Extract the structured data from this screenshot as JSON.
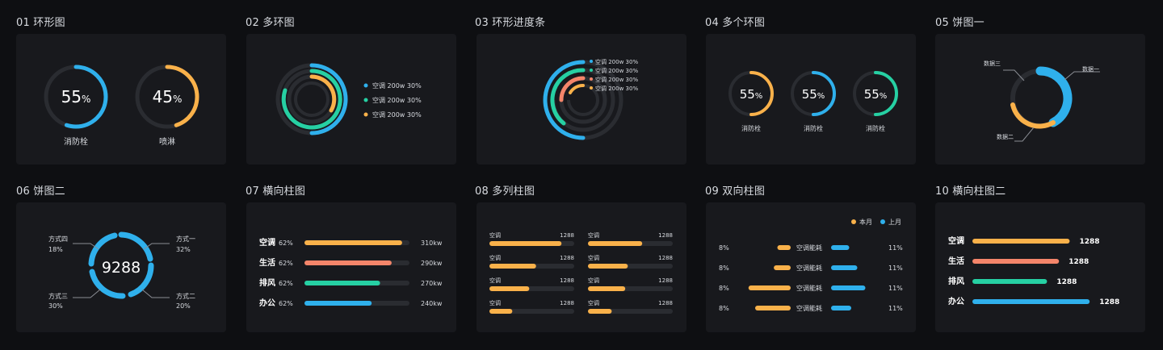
{
  "titles": [
    "01 环形图",
    "02 多环图",
    "03 环形进度条",
    "04 多个环图",
    "05 饼图一",
    "06 饼图二",
    "07 横向柱图",
    "08 多列柱图",
    "09 双向柱图",
    "10 横向柱图二"
  ],
  "colors": {
    "blue": "#2fb0ec",
    "orange": "#f9b14a",
    "green": "#26d0a3",
    "salmon": "#f4856a",
    "track": "#2a2c31",
    "bg": "#18191d"
  },
  "c01": {
    "items": [
      {
        "value": "55",
        "unit": "%",
        "label": "消防栓",
        "pct": 0.55,
        "color": "#2fb0ec"
      },
      {
        "value": "45",
        "unit": "%",
        "label": "喷淋",
        "pct": 0.45,
        "color": "#f9b14a"
      }
    ]
  },
  "c02": {
    "legend": [
      {
        "text": "空调 200w  30%",
        "color": "#2fb0ec"
      },
      {
        "text": "空调 200w  30%",
        "color": "#26d0a3"
      },
      {
        "text": "空调 200w  30%",
        "color": "#f9b14a"
      }
    ]
  },
  "c03": {
    "legend": [
      {
        "text": "空调 200w  30%",
        "color": "#2fb0ec"
      },
      {
        "text": "空调 200w  30%",
        "color": "#26d0a3"
      },
      {
        "text": "空调 200w  30%",
        "color": "#f4856a"
      },
      {
        "text": "空调 200w  30%",
        "color": "#f9b14a"
      }
    ]
  },
  "c04": {
    "items": [
      {
        "value": "55",
        "unit": "%",
        "label": "消防栓",
        "color": "#f9b14a"
      },
      {
        "value": "55",
        "unit": "%",
        "label": "消防栓",
        "color": "#2fb0ec"
      },
      {
        "value": "55",
        "unit": "%",
        "label": "消防栓",
        "color": "#26d0a3"
      }
    ]
  },
  "c05": {
    "labels": [
      "数据三",
      "数据一",
      "数据二"
    ]
  },
  "c06": {
    "center": "9288",
    "labels": [
      {
        "name": "方式四",
        "pct": "18%"
      },
      {
        "name": "方式一",
        "pct": "32%"
      },
      {
        "name": "方式三",
        "pct": "30%"
      },
      {
        "name": "方式二",
        "pct": "20%"
      }
    ]
  },
  "c07": {
    "rows": [
      {
        "name": "空调",
        "pct": "62%",
        "value": "310kw",
        "fill": 0.93,
        "color": "#f9b14a"
      },
      {
        "name": "生活",
        "pct": "62%",
        "value": "290kw",
        "fill": 0.83,
        "color": "#f4856a"
      },
      {
        "name": "排风",
        "pct": "62%",
        "value": "270kw",
        "fill": 0.72,
        "color": "#26d0a3"
      },
      {
        "name": "办公",
        "pct": "62%",
        "value": "240kw",
        "fill": 0.64,
        "color": "#2fb0ec"
      }
    ]
  },
  "c08": {
    "rows": [
      {
        "l": {
          "name": "空调",
          "value": "1288",
          "fill": 0.85
        },
        "r": {
          "name": "空调",
          "value": "1288",
          "fill": 0.64
        }
      },
      {
        "l": {
          "name": "空调",
          "value": "1288",
          "fill": 0.55
        },
        "r": {
          "name": "空调",
          "value": "1288",
          "fill": 0.47
        }
      },
      {
        "l": {
          "name": "空调",
          "value": "1288",
          "fill": 0.47
        },
        "r": {
          "name": "空调",
          "value": "1288",
          "fill": 0.44
        }
      },
      {
        "l": {
          "name": "空调",
          "value": "1288",
          "fill": 0.27
        },
        "r": {
          "name": "空调",
          "value": "1288",
          "fill": 0.28
        }
      }
    ]
  },
  "c09": {
    "legend": [
      {
        "text": "本月",
        "color": "#f9b14a"
      },
      {
        "text": "上月",
        "color": "#2fb0ec"
      }
    ],
    "rows": [
      {
        "lp": "8%",
        "name": "空调能耗",
        "rp": "11%",
        "lf": 0.3,
        "rf": 0.45
      },
      {
        "lp": "8%",
        "name": "空调能耗",
        "rp": "11%",
        "lf": 0.38,
        "rf": 0.65
      },
      {
        "lp": "8%",
        "name": "空调能耗",
        "rp": "11%",
        "lf": 0.95,
        "rf": 0.85
      },
      {
        "lp": "8%",
        "name": "空调能耗",
        "rp": "11%",
        "lf": 0.8,
        "rf": 0.5
      }
    ]
  },
  "c10": {
    "rows": [
      {
        "name": "空调",
        "value": "1288",
        "fill": 0.73,
        "color": "#f9b14a"
      },
      {
        "name": "生活",
        "value": "1288",
        "fill": 0.65,
        "color": "#f4856a"
      },
      {
        "name": "排风",
        "value": "1288",
        "fill": 0.56,
        "color": "#26d0a3"
      },
      {
        "name": "办公",
        "value": "1288",
        "fill": 0.88,
        "color": "#2fb0ec"
      }
    ]
  }
}
